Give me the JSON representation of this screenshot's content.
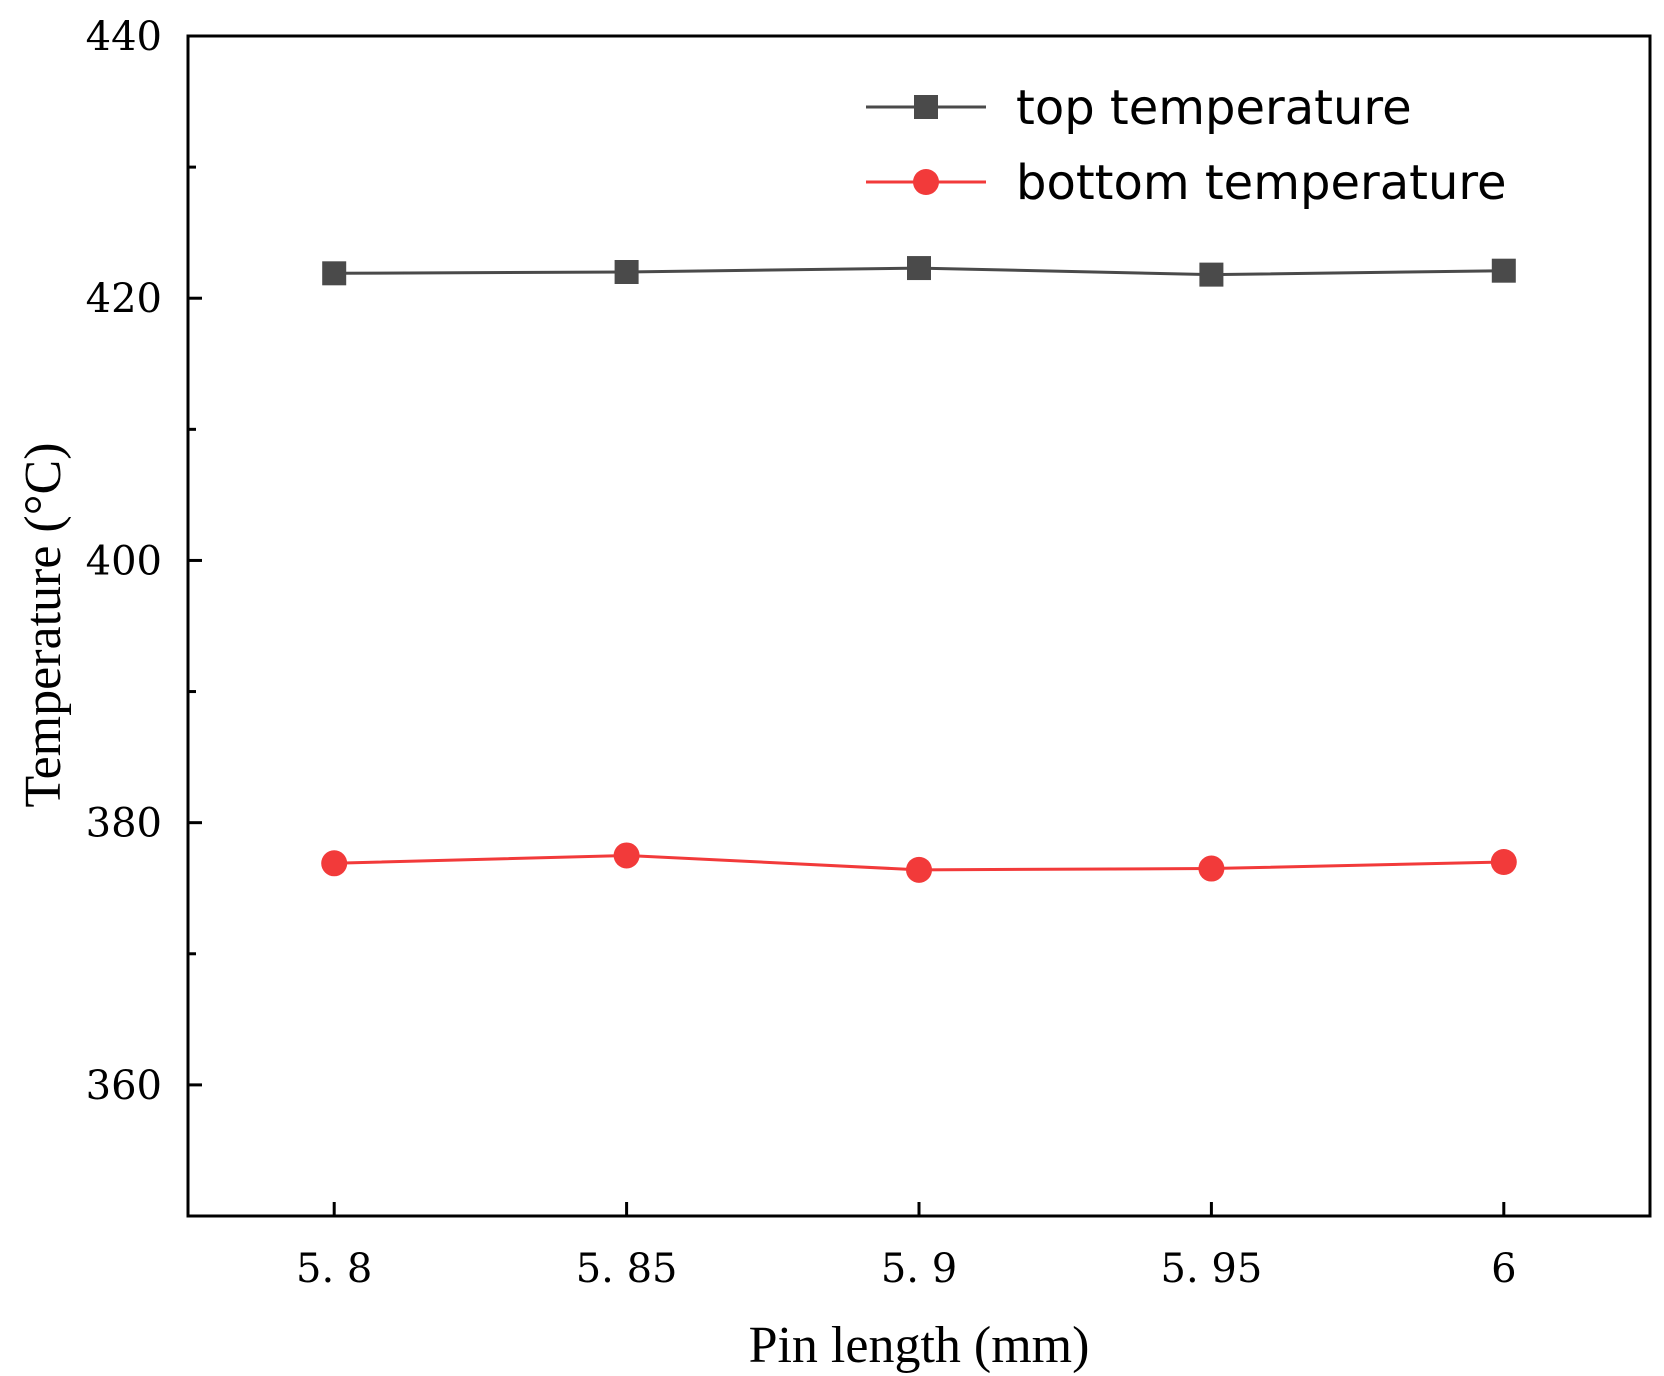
{
  "chart_data": {
    "type": "line",
    "title": "",
    "xlabel": "Pin length (mm)",
    "ylabel": "Temperature (°C)",
    "x": [
      5.8,
      5.85,
      5.9,
      5.95,
      6.0
    ],
    "x_tick_labels": [
      "5. 8",
      "5. 85",
      "5. 9",
      "5. 95",
      "6"
    ],
    "xlim": [
      5.775,
      6.025
    ],
    "ylim": [
      350,
      440
    ],
    "y_ticks": [
      360,
      380,
      400,
      420,
      440
    ],
    "y_tick_labels": [
      "360",
      "380",
      "400",
      "420",
      "440"
    ],
    "y_minor_ticks": [
      370,
      390,
      410,
      430
    ],
    "grid": false,
    "legend_position": "top-right",
    "series": [
      {
        "name": "top temperature",
        "marker": "square",
        "color": "#4a4a4a",
        "values": [
          421.9,
          422.0,
          422.3,
          421.8,
          422.1
        ]
      },
      {
        "name": "bottom temperature",
        "marker": "circle",
        "color": "#f23a3a",
        "values": [
          376.9,
          377.5,
          376.4,
          376.5,
          377.0
        ]
      }
    ]
  }
}
